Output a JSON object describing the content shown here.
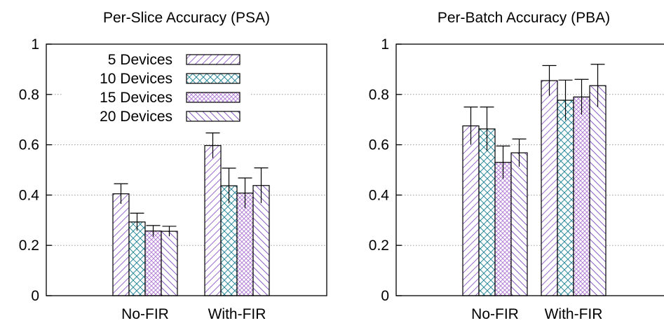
{
  "colors": {
    "series_1": "#9b6fd0",
    "series_2": "#2e8b9a",
    "series_3": "#b07ad6",
    "series_4": "#8a5fc4",
    "grid": "#9a9a9a",
    "axis": "#000000"
  },
  "chart_data": [
    {
      "type": "bar",
      "title": "Per-Slice Accuracy (PSA)",
      "xlabel": "",
      "ylabel": "",
      "ylim": [
        0,
        1
      ],
      "yticks": [
        "0",
        "0.2",
        "0.4",
        "0.6",
        "0.8",
        "1"
      ],
      "grid": true,
      "legend_position": "top-left",
      "categories": [
        "No-FIR",
        "With-FIR"
      ],
      "series": [
        {
          "name": "5 Devices",
          "values": [
            0.405,
            0.597
          ],
          "error": [
            0.04,
            0.05
          ],
          "pattern": "diag-right"
        },
        {
          "name": "10 Devices",
          "values": [
            0.293,
            0.437
          ],
          "error": [
            0.035,
            0.07
          ],
          "pattern": "cross"
        },
        {
          "name": "15 Devices",
          "values": [
            0.257,
            0.408
          ],
          "error": [
            0.022,
            0.06
          ],
          "pattern": "dense-cross"
        },
        {
          "name": "20 Devices",
          "values": [
            0.256,
            0.438
          ],
          "error": [
            0.02,
            0.07
          ],
          "pattern": "diag-left"
        }
      ]
    },
    {
      "type": "bar",
      "title": "Per-Batch Accuracy (PBA)",
      "xlabel": "",
      "ylabel": "",
      "ylim": [
        0,
        1
      ],
      "yticks": [
        "0",
        "0.2",
        "0.4",
        "0.6",
        "0.8",
        "1"
      ],
      "grid": true,
      "legend_position": "none",
      "categories": [
        "No-FIR",
        "With-FIR"
      ],
      "series": [
        {
          "name": "5 Devices",
          "values": [
            0.675,
            0.855
          ],
          "error": [
            0.075,
            0.06
          ],
          "pattern": "diag-right"
        },
        {
          "name": "10 Devices",
          "values": [
            0.663,
            0.777
          ],
          "error": [
            0.087,
            0.08
          ],
          "pattern": "cross"
        },
        {
          "name": "15 Devices",
          "values": [
            0.53,
            0.79
          ],
          "error": [
            0.065,
            0.07
          ],
          "pattern": "dense-cross"
        },
        {
          "name": "20 Devices",
          "values": [
            0.568,
            0.835
          ],
          "error": [
            0.055,
            0.085
          ],
          "pattern": "diag-left"
        }
      ]
    }
  ]
}
